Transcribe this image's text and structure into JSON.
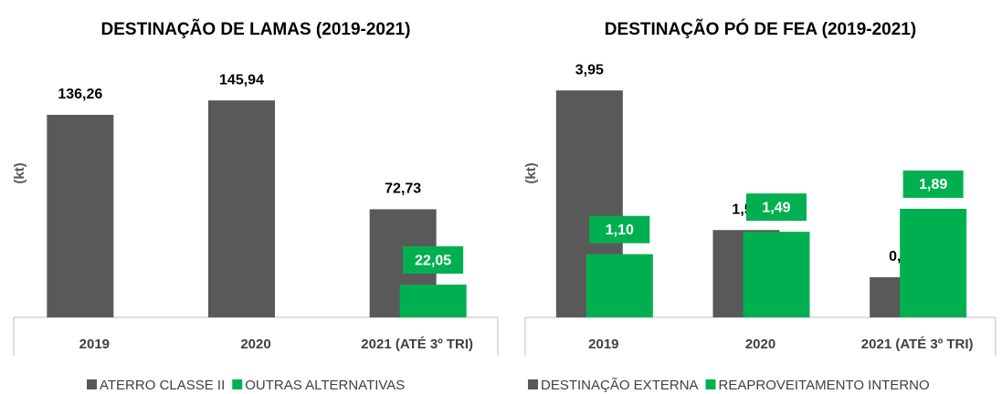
{
  "chart_data": [
    {
      "type": "bar",
      "title": "DESTINAÇÃO DE LAMAS (2019-2021)",
      "y_label": "(kt)",
      "categories": [
        "2019",
        "2020",
        "2021 (ATÉ 3º TRI)"
      ],
      "series": [
        {
          "name": "ATERRO CLASSE II",
          "color": "#595959",
          "values": [
            136.26,
            145.94,
            72.73
          ],
          "value_labels": [
            "136,26",
            "145,94",
            "72,73"
          ]
        },
        {
          "name": "OUTRAS ALTERNATIVAS",
          "color": "#00b050",
          "values": [
            null,
            null,
            22.05
          ],
          "value_labels": [
            null,
            null,
            "22,05"
          ]
        }
      ],
      "ylim": [
        0,
        200
      ],
      "legend": "bottom"
    },
    {
      "type": "bar",
      "title": "DESTINAÇÃO PÓ DE FEA  (2019-2021)",
      "y_label": "(kt)",
      "categories": [
        "2019",
        "2020",
        "2021 (ATÉ 3º TRI)"
      ],
      "series": [
        {
          "name": "DESTINAÇÃO EXTERNA",
          "color": "#595959",
          "values": [
            3.95,
            1.52,
            0.7
          ],
          "value_labels": [
            "3,95",
            "1,52",
            "0,70"
          ]
        },
        {
          "name": "REAPROVEITAMENTO INTERNO",
          "color": "#00b050",
          "values": [
            1.1,
            1.49,
            1.89
          ],
          "value_labels": [
            "1,10",
            "1,49",
            "1,89"
          ]
        }
      ],
      "ylim": [
        0,
        5
      ],
      "legend": "bottom"
    }
  ]
}
